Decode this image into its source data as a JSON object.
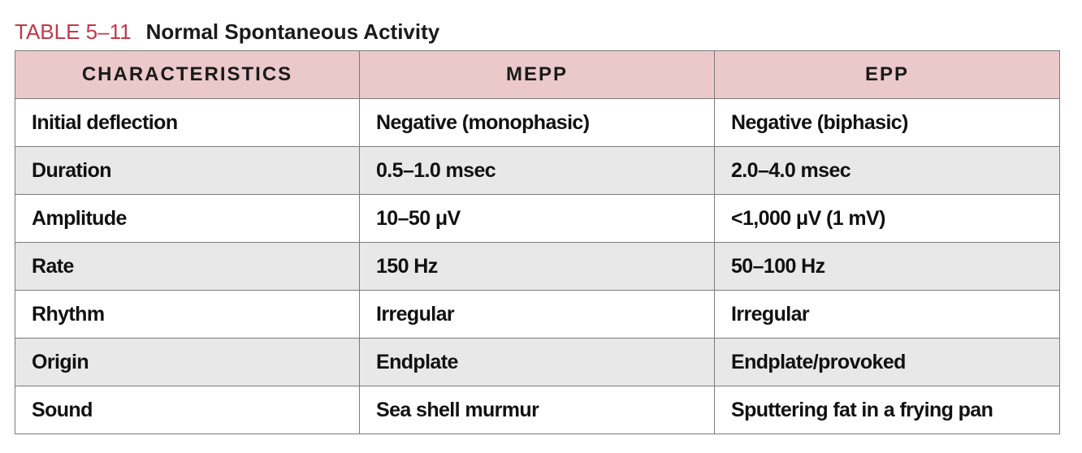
{
  "caption": {
    "label": "TABLE 5–11",
    "title": "Normal Spontaneous Activity"
  },
  "table": {
    "headers": [
      "CHARACTERISTICS",
      "MEPP",
      "EPP"
    ],
    "rows": [
      [
        "Initial deflection",
        "Negative (monophasic)",
        "Negative (biphasic)"
      ],
      [
        "Duration",
        "0.5–1.0 msec",
        "2.0–4.0 msec"
      ],
      [
        "Amplitude",
        "10–50 μV",
        "<1,000 μV (1 mV)"
      ],
      [
        "Rate",
        "150 Hz",
        "50–100 Hz"
      ],
      [
        "Rhythm",
        "Irregular",
        "Irregular"
      ],
      [
        "Origin",
        "Endplate",
        "Endplate/provoked"
      ],
      [
        "Sound",
        "Sea shell murmur",
        "Sputtering fat in a frying pan"
      ]
    ]
  },
  "colors": {
    "caption_label": "#c0394b",
    "header_bg": "#ebc9ca",
    "stripe_bg": "#e8e8e8",
    "border": "#7b7b7b"
  }
}
